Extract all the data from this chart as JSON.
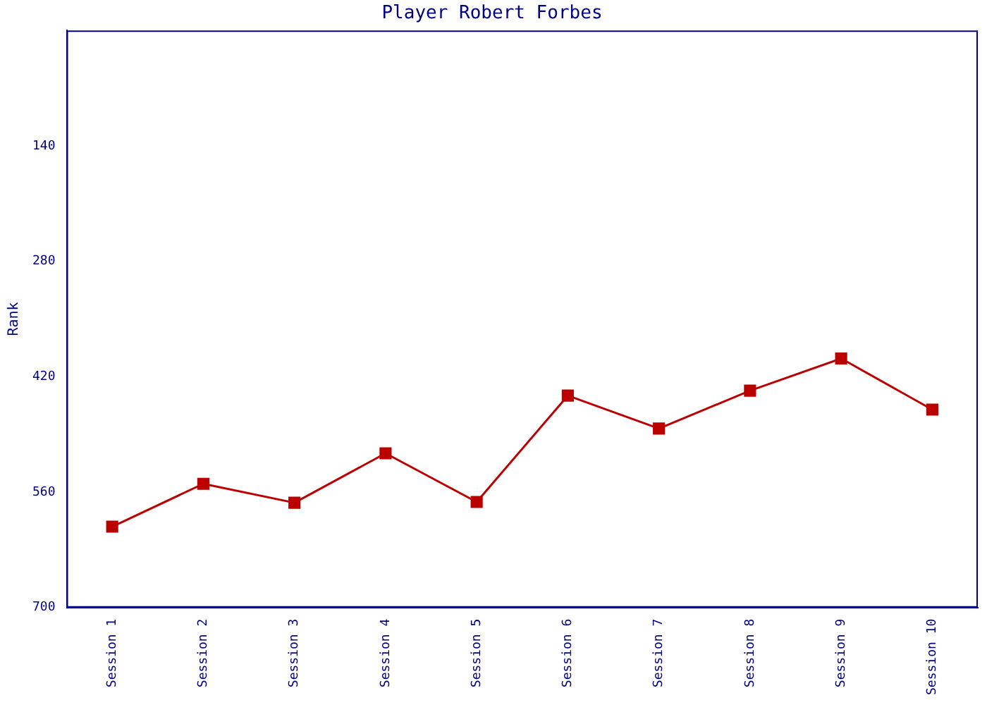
{
  "chart_data": {
    "type": "line",
    "title": "Player Robert Forbes",
    "ylabel": "Rank",
    "categories": [
      "Session 1",
      "Session 2",
      "Session 3",
      "Session 4",
      "Session 5",
      "Session 6",
      "Session 7",
      "Session 8",
      "Session 9",
      "Session 10"
    ],
    "series": [
      {
        "color": "#bb0000",
        "values": [
          602,
          550,
          573,
          513,
          572,
          443,
          483,
          437,
          398,
          460
        ]
      }
    ],
    "ylim": [
      700,
      0
    ],
    "yticks": [
      140,
      280,
      420,
      560,
      700
    ],
    "grid": false,
    "legend": false,
    "marker": "square",
    "line_style": "solid"
  }
}
